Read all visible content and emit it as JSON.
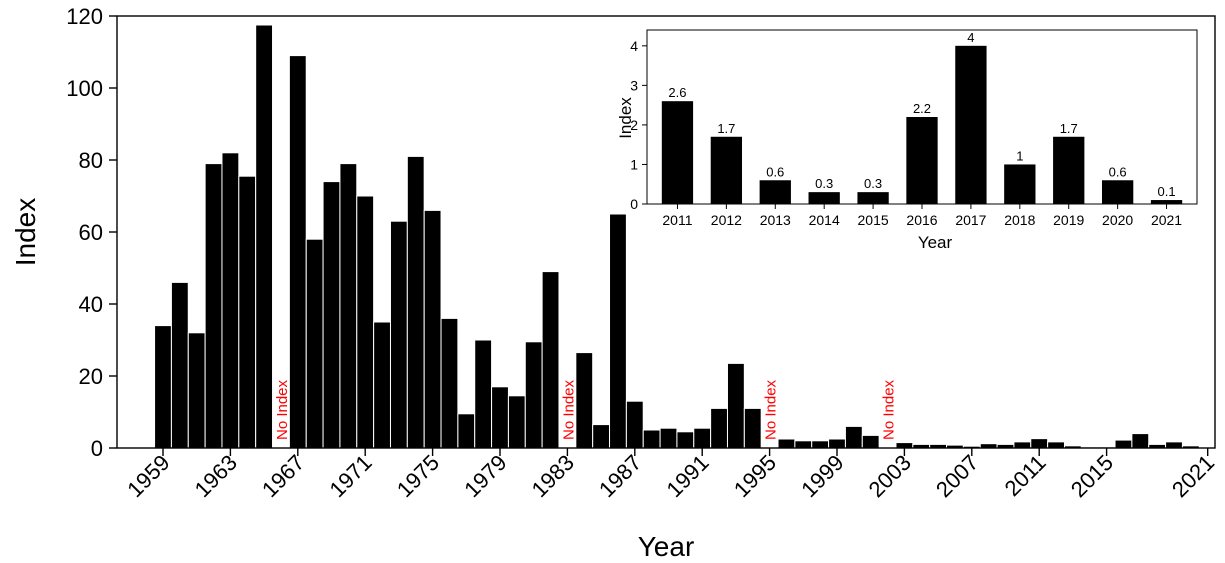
{
  "chart_data": [
    {
      "type": "bar",
      "xlabel": "Year",
      "ylabel": "Index",
      "ylim": [
        0,
        120
      ],
      "yticks": [
        0,
        20,
        40,
        60,
        80,
        100,
        120
      ],
      "xticks": [
        "1959",
        "1963",
        "1967",
        "1971",
        "1975",
        "1979",
        "1983",
        "1987",
        "1991",
        "1995",
        "1999",
        "2003",
        "2007",
        "2011",
        "2015",
        "2021"
      ],
      "years": [
        1959,
        1960,
        1961,
        1962,
        1963,
        1964,
        1965,
        1966,
        1967,
        1968,
        1969,
        1970,
        1971,
        1972,
        1973,
        1974,
        1975,
        1976,
        1977,
        1978,
        1979,
        1980,
        1981,
        1982,
        1983,
        1984,
        1985,
        1986,
        1987,
        1988,
        1989,
        1990,
        1991,
        1992,
        1993,
        1994,
        1995,
        1996,
        1997,
        1998,
        1999,
        2000,
        2001,
        2002,
        2003,
        2004,
        2005,
        2006,
        2007,
        2008,
        2009,
        2010,
        2011,
        2012,
        2013,
        2014,
        2015,
        2016,
        2017,
        2018,
        2019,
        2020,
        2021
      ],
      "values": [
        34,
        46,
        32,
        79,
        82,
        75.5,
        117.5,
        null,
        109,
        58,
        74,
        79,
        70,
        35,
        63,
        81,
        66,
        36,
        9.5,
        30,
        17,
        14.5,
        29.5,
        49,
        null,
        26.5,
        6.5,
        65,
        13,
        5,
        5.5,
        4.5,
        5.5,
        11,
        23.5,
        11,
        null,
        2.5,
        2,
        2,
        2.5,
        6,
        3.5,
        null,
        1.5,
        1,
        1,
        0.8,
        0.5,
        1.2,
        1,
        1.7,
        2.6,
        1.7,
        0.6,
        0.3,
        0.3,
        2.2,
        4,
        1,
        1.7,
        0.6,
        0.1
      ],
      "annotations": [
        {
          "year": 1966,
          "text": "No Index"
        },
        {
          "year": 1983,
          "text": "No Index"
        },
        {
          "year": 1995,
          "text": "No Index"
        },
        {
          "year": 2002,
          "text": "No Index"
        }
      ],
      "annotation_color": "#ff0000",
      "bar_color": "#000000",
      "grid": false
    },
    {
      "type": "bar",
      "xlabel": "Year",
      "ylabel": "Index",
      "ylim": [
        0,
        4.4
      ],
      "yticks": [
        0,
        1,
        2,
        3,
        4
      ],
      "categories": [
        "2011",
        "2012",
        "2013",
        "2014",
        "2015",
        "2016",
        "2017",
        "2018",
        "2019",
        "2020",
        "2021"
      ],
      "values": [
        2.6,
        1.7,
        0.6,
        0.3,
        0.3,
        2.2,
        4,
        1,
        1.7,
        0.6,
        0.1
      ],
      "data_labels": [
        "2.6",
        "1.7",
        "0.6",
        "0.3",
        "0.3",
        "2.2",
        "4",
        "1",
        "1.7",
        "0.6",
        "0.1"
      ],
      "placement": "inset top-right",
      "bar_color": "#000000",
      "grid": false
    }
  ]
}
